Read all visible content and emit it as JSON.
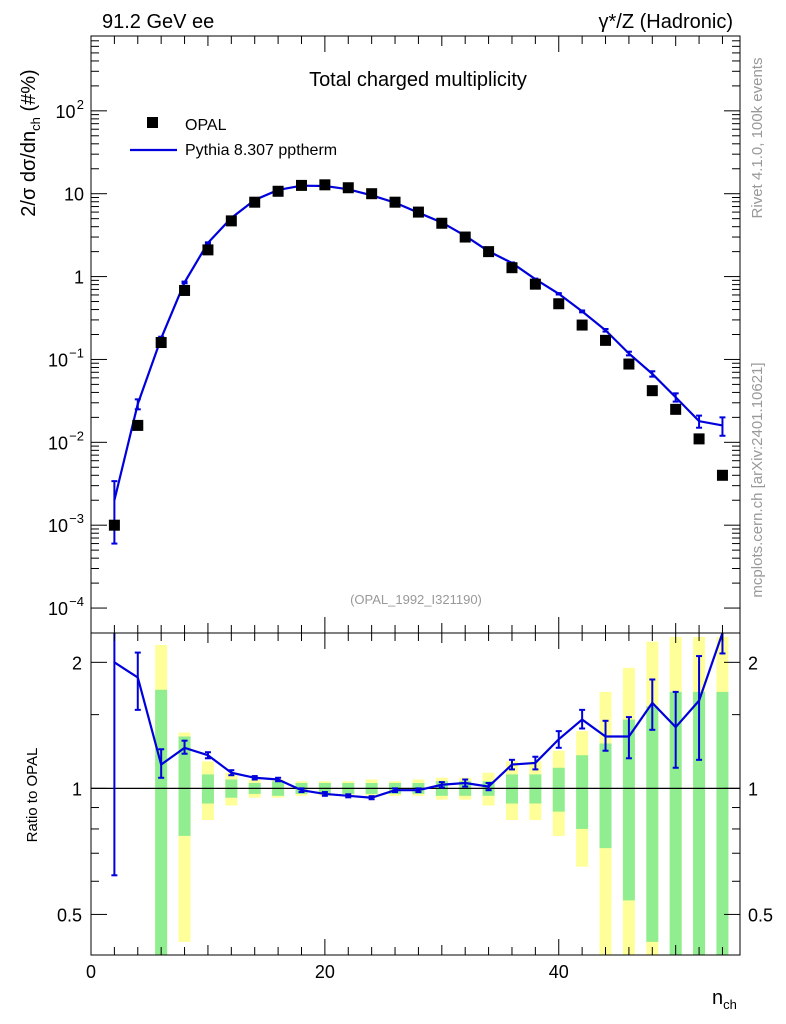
{
  "header": {
    "left": "91.2 GeV ee",
    "right": "γ*/Z (Hadronic)"
  },
  "side_labels": {
    "rivet": "Rivet 4.1.0,  100k events",
    "mcplots": "mcplots.cern.ch [arXiv:2401.10621]"
  },
  "colors": {
    "mc": "#0000dd",
    "band_inner": "#90ee90",
    "band_outer": "#ffff99",
    "data": "#000000"
  },
  "chart_data": [
    {
      "type": "scatter",
      "title": "Total charged multiplicity",
      "ylabel": "2/σ  dσ/dn_ch (#%)",
      "yscale": "log",
      "xlim": [
        0,
        55.5
      ],
      "ylim": [
        5e-05,
        800
      ],
      "reference": "(OPAL_1992_I321190)",
      "legend": {
        "data": "OPAL",
        "mc": "Pythia 8.307 pptherm",
        "placement": "top-left"
      },
      "yticks": [
        {
          "v": 0.0001,
          "base": "10",
          "exp": "−4"
        },
        {
          "v": 0.001,
          "base": "10",
          "exp": "−3"
        },
        {
          "v": 0.01,
          "base": "10",
          "exp": "−2"
        },
        {
          "v": 0.1,
          "base": "10",
          "exp": "−1"
        },
        {
          "v": 1,
          "base": "1",
          "exp": ""
        },
        {
          "v": 10,
          "base": "10",
          "exp": ""
        },
        {
          "v": 100,
          "base": "10",
          "exp": "2"
        }
      ],
      "data_points": {
        "x": [
          2,
          4,
          6,
          8,
          10,
          12,
          14,
          16,
          18,
          20,
          22,
          24,
          26,
          28,
          30,
          32,
          34,
          36,
          38,
          40,
          42,
          44,
          46,
          48,
          50,
          52,
          54
        ],
        "y": [
          0.001,
          0.016,
          0.16,
          0.68,
          2.1,
          4.7,
          7.9,
          10.7,
          12.6,
          12.8,
          11.8,
          10.0,
          7.9,
          6.0,
          4.4,
          3.0,
          2.0,
          1.28,
          0.81,
          0.47,
          0.26,
          0.17,
          0.088,
          0.042,
          0.025,
          0.011,
          0.004
        ]
      },
      "mc_series": {
        "x": [
          2,
          4,
          6,
          8,
          10,
          12,
          14,
          16,
          18,
          20,
          22,
          24,
          26,
          28,
          30,
          32,
          34,
          36,
          38,
          40,
          42,
          44,
          46,
          48,
          50,
          52,
          54
        ],
        "y": [
          0.002,
          0.029,
          0.18,
          0.85,
          2.55,
          5.1,
          8.4,
          11.1,
          12.5,
          12.4,
          11.3,
          9.55,
          7.8,
          5.9,
          4.5,
          3.1,
          2.02,
          1.46,
          0.93,
          0.62,
          0.38,
          0.225,
          0.118,
          0.067,
          0.035,
          0.018,
          0.016
        ],
        "yerr": [
          0.0014,
          0.004,
          0.008,
          0.02,
          0.04,
          0.06,
          0.06,
          0.07,
          0.07,
          0.07,
          0.07,
          0.06,
          0.05,
          0.04,
          0.04,
          0.03,
          0.02,
          0.02,
          0.015,
          0.012,
          0.01,
          0.008,
          0.006,
          0.005,
          0.004,
          0.003,
          0.004
        ]
      }
    },
    {
      "type": "line",
      "ylabel": "Ratio to OPAL",
      "xlabel": "n_ch",
      "yscale": "log",
      "xlim": [
        0,
        55.5
      ],
      "ylim": [
        0.4,
        2.35
      ],
      "yticks": [
        0.5,
        1,
        2
      ],
      "yticks_minor": [
        0.6,
        0.7,
        0.8,
        0.9,
        1.5
      ],
      "ytick_labels": [
        "0.5",
        "1",
        "2"
      ],
      "xticks": [
        0,
        20,
        40
      ],
      "xtick_labels": [
        "0",
        "20",
        "40"
      ],
      "reference_line": 1,
      "bands": {
        "x": [
          6,
          8,
          10,
          12,
          14,
          16,
          18,
          20,
          22,
          24,
          26,
          28,
          30,
          32,
          34,
          36,
          38,
          40,
          42,
          44,
          46,
          48,
          50,
          52,
          54
        ],
        "inner_lo": [
          0.3,
          0.77,
          0.92,
          0.95,
          0.97,
          0.96,
          0.97,
          0.97,
          0.97,
          0.97,
          0.97,
          0.97,
          0.96,
          0.96,
          0.96,
          0.92,
          0.92,
          0.88,
          0.8,
          0.72,
          0.54,
          0.43,
          0.3,
          0.3,
          0.3
        ],
        "inner_hi": [
          1.72,
          1.33,
          1.08,
          1.05,
          1.03,
          1.04,
          1.03,
          1.03,
          1.03,
          1.03,
          1.03,
          1.03,
          1.04,
          1.04,
          1.04,
          1.08,
          1.08,
          1.12,
          1.2,
          1.28,
          1.46,
          1.57,
          1.7,
          1.7,
          1.7
        ],
        "outer_lo": [
          0.3,
          0.43,
          0.84,
          0.91,
          0.95,
          0.95,
          0.96,
          0.96,
          0.96,
          0.96,
          0.96,
          0.96,
          0.94,
          0.94,
          0.91,
          0.84,
          0.84,
          0.77,
          0.65,
          0.35,
          0.35,
          0.35,
          0.35,
          0.35,
          0.35
        ],
        "outer_hi": [
          2.2,
          1.36,
          1.16,
          1.09,
          1.05,
          1.05,
          1.04,
          1.04,
          1.04,
          1.05,
          1.04,
          1.05,
          1.06,
          1.06,
          1.09,
          1.16,
          1.16,
          1.23,
          1.37,
          1.7,
          1.94,
          2.24,
          2.3,
          2.3,
          2.3
        ]
      },
      "mc_ratio": {
        "x": [
          2,
          4,
          6,
          8,
          10,
          12,
          14,
          16,
          18,
          20,
          22,
          24,
          26,
          28,
          30,
          32,
          34,
          36,
          38,
          40,
          42,
          44,
          46,
          48,
          50,
          52,
          54
        ],
        "y": [
          2.0,
          1.84,
          1.14,
          1.25,
          1.2,
          1.09,
          1.06,
          1.05,
          0.99,
          0.97,
          0.96,
          0.95,
          0.99,
          0.99,
          1.02,
          1.03,
          1.01,
          1.14,
          1.15,
          1.31,
          1.46,
          1.33,
          1.33,
          1.6,
          1.4,
          1.62,
          2.6
        ],
        "yerr_lo": [
          1.38,
          0.3,
          0.08,
          0.04,
          0.02,
          0.015,
          0.01,
          0.01,
          0.01,
          0.01,
          0.008,
          0.008,
          0.01,
          0.01,
          0.015,
          0.02,
          0.02,
          0.03,
          0.04,
          0.06,
          0.07,
          0.1,
          0.15,
          0.22,
          0.28,
          0.45,
          0.5
        ],
        "yerr_hi": [
          0.7,
          0.27,
          0.1,
          0.05,
          0.02,
          0.015,
          0.01,
          0.01,
          0.01,
          0.01,
          0.008,
          0.008,
          0.01,
          0.01,
          0.015,
          0.02,
          0.02,
          0.03,
          0.04,
          0.06,
          0.08,
          0.12,
          0.15,
          0.22,
          0.3,
          0.45,
          0.5
        ]
      }
    }
  ]
}
